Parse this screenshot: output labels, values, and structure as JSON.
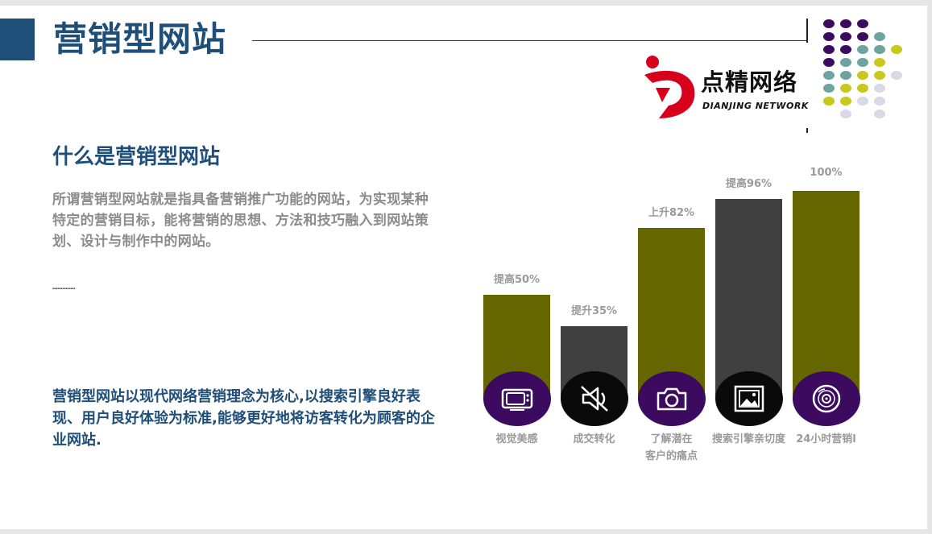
{
  "header": {
    "title": "营销型网站"
  },
  "logo": {
    "name_cn": "点精网络",
    "name_en": "DIANJING NETWORK"
  },
  "section": {
    "subtitle": "什么是营销型网站",
    "paragraph1": "所谓营销型网站就是指具备营销推广功能的网站，为实现某种特定的营销目标，能将营销的思想、方法和技巧融入到网站策划、设计与制作中的网站。",
    "tiny_text": "▪▪▪▪▪▪▪▪▪▪▪▪▪▪",
    "paragraph2": "营销型网站以现代网络营销理念为核心,以搜索引擎良好表现、用户良好体验为标准,能够更好地将访客转化为顾客的企业网站."
  },
  "colors": {
    "title": "#1f4e79",
    "olive_bar": "#666600",
    "dark_bar": "#404040",
    "purple_circle": "#3c0a5e",
    "black_circle": "#0a0a0a"
  },
  "chart_data": {
    "type": "bar",
    "categories": [
      "视觉美感",
      "成交转化",
      "了解潜在客户的痛点",
      "搜索引擎亲切度",
      "24小时营销"
    ],
    "category_lines": [
      [
        "视觉美感"
      ],
      [
        "成交转化"
      ],
      [
        "了解潜在",
        "客户的痛点"
      ],
      [
        "搜索引擎亲切度"
      ],
      [
        "24小时营销l"
      ]
    ],
    "values": [
      50,
      35,
      82,
      96,
      100
    ],
    "data_labels": [
      "提高50%",
      "提升35%",
      "上升82%",
      "提高96%",
      "100%"
    ],
    "bar_colors": [
      "#666600",
      "#404040",
      "#666600",
      "#404040",
      "#666600"
    ],
    "circle_colors": [
      "#3c0a5e",
      "#0a0a0a",
      "#3c0a5e",
      "#0a0a0a",
      "#3c0a5e"
    ],
    "icons": [
      "tv-icon",
      "speaker-muted-icon",
      "camera-icon",
      "image-frame-icon",
      "disc-icon"
    ]
  }
}
